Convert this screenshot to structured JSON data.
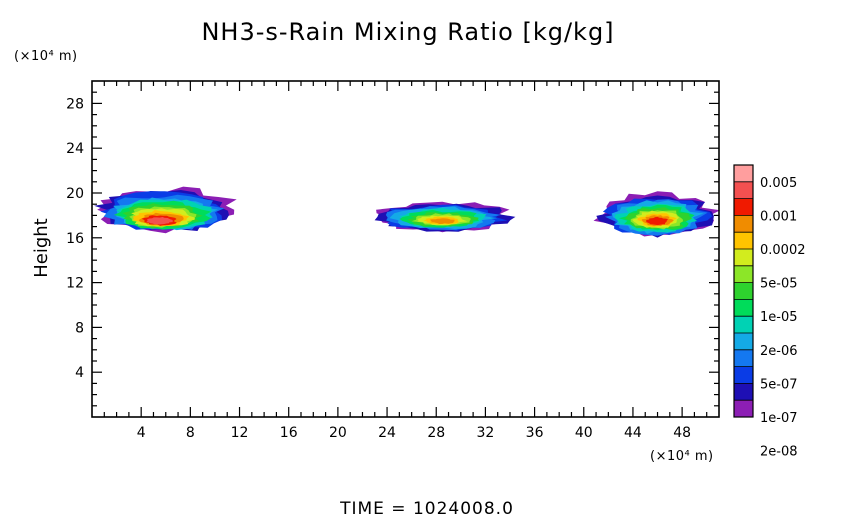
{
  "chart_data": {
    "type": "heatmap",
    "title": "NH3-s-Rain Mixing Ratio [kg/kg]",
    "ylabel": "Height",
    "x_unit": "(×10⁴ m)",
    "y_unit": "(×10⁴ m)",
    "footer": "TIME = 1024008.0",
    "xlim": [
      0,
      51
    ],
    "ylim": [
      0,
      30
    ],
    "x_ticks": [
      4,
      8,
      12,
      16,
      20,
      24,
      28,
      32,
      36,
      40,
      44,
      48
    ],
    "y_ticks": [
      4,
      8,
      12,
      16,
      20,
      24,
      28
    ],
    "colorbar": {
      "labels": [
        "0.005",
        "0.001",
        "0.0002",
        "5e-05",
        "1e-05",
        "2e-06",
        "5e-07",
        "1e-07",
        "2e-08"
      ],
      "colors": [
        "#ff9e9e",
        "#f45050",
        "#f01a00",
        "#f08c00",
        "#ffc400",
        "#d2ec1e",
        "#8ce628",
        "#2ed22e",
        "#00dc5a",
        "#00d2b4",
        "#14aae6",
        "#1478f0",
        "#0a3ce6",
        "#1e0fb4",
        "#8c1eb4"
      ]
    },
    "clouds": [
      {
        "name": "cloud-left",
        "x_range": [
          0,
          12
        ],
        "y_range": [
          16.5,
          20.5
        ],
        "core": {
          "x": 5.5,
          "y": 17.5,
          "level": 13
        }
      },
      {
        "name": "cloud-middle",
        "x_range": [
          22.5,
          34.5
        ],
        "y_range": [
          16.5,
          19.3
        ],
        "core": {
          "x": 28.5,
          "y": 17.5,
          "level": 11
        }
      },
      {
        "name": "cloud-right",
        "x_range": [
          41,
          51
        ],
        "y_range": [
          16,
          20
        ],
        "core": {
          "x": 46,
          "y": 17.5,
          "level": 12
        }
      }
    ]
  }
}
